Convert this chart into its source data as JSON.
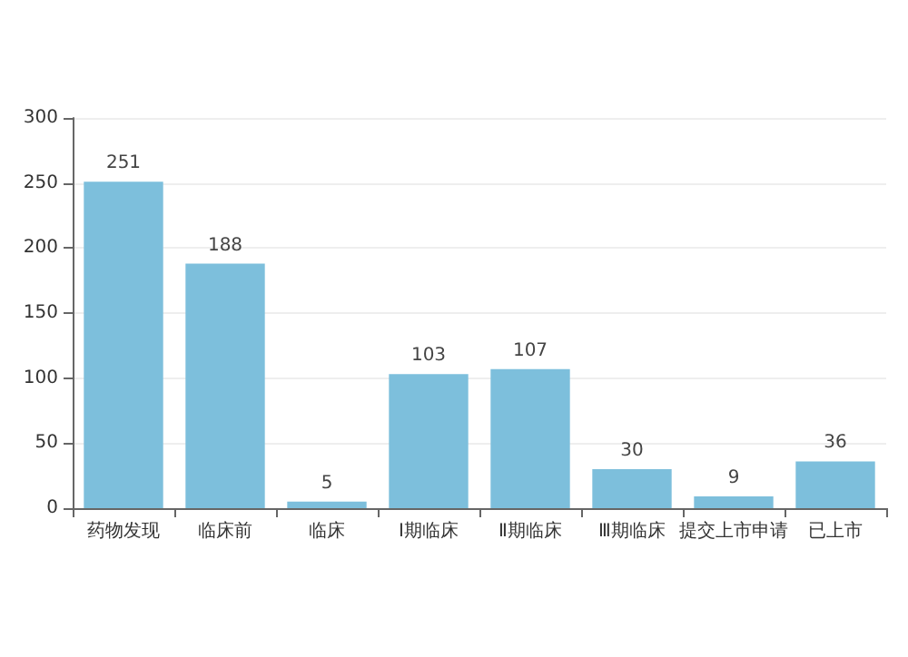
{
  "chart_data": {
    "type": "bar",
    "categories": [
      "药物发现",
      "临床前",
      "临床",
      "Ⅰ期临床",
      "Ⅱ期临床",
      "Ⅲ期临床",
      "提交上市申请",
      "已上市"
    ],
    "values": [
      251,
      188,
      5,
      103,
      107,
      30,
      9,
      36
    ],
    "color": "#7dbfdc",
    "ylim": [
      0,
      300
    ],
    "yticks": [
      0,
      50,
      100,
      150,
      200,
      250,
      300
    ],
    "grid": "y",
    "data_labels": true
  }
}
